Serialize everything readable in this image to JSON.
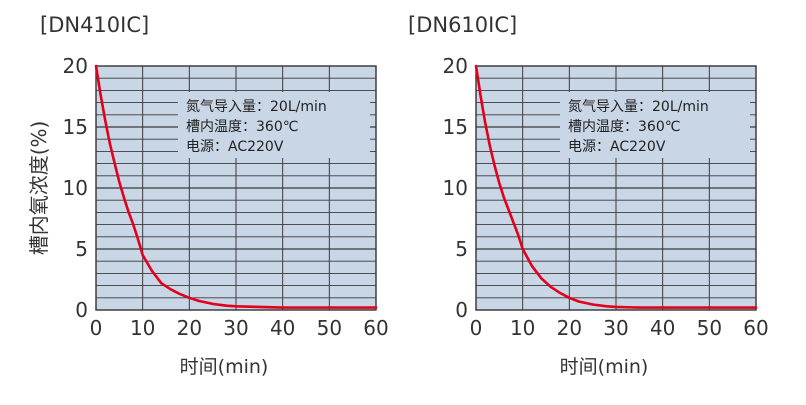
{
  "y_axis_label": "槽内氧浓度(%)",
  "chart_data": [
    {
      "type": "line",
      "title": "[DN410IC]",
      "xlabel": "时间(min)",
      "ylabel": "槽内氧浓度(%)",
      "xlim": [
        0,
        60
      ],
      "ylim": [
        0,
        20
      ],
      "x_ticks": [
        "0",
        "10",
        "20",
        "30",
        "40",
        "50",
        "60"
      ],
      "y_ticks": [
        "0",
        "5",
        "10",
        "15",
        "20"
      ],
      "grid": true,
      "annotations": [
        "氮气导入量：20L/min",
        "槽内温度：360℃",
        "电源：AC220V"
      ],
      "series": [
        {
          "color": "#e3001b",
          "x": [
            0,
            1,
            2,
            3,
            4,
            5,
            6,
            7,
            8,
            9,
            10,
            12,
            14,
            16,
            18,
            20,
            22,
            25,
            28,
            30,
            35,
            40,
            45,
            50,
            55,
            60
          ],
          "y": [
            20,
            17.6,
            15.5,
            13.6,
            12.0,
            10.5,
            9.2,
            8.0,
            7.0,
            5.8,
            4.5,
            3.2,
            2.2,
            1.7,
            1.3,
            1.0,
            0.75,
            0.5,
            0.35,
            0.3,
            0.25,
            0.2,
            0.2,
            0.2,
            0.2,
            0.2
          ]
        }
      ]
    },
    {
      "type": "line",
      "title": "[DN610IC]",
      "xlabel": "时间(min)",
      "ylabel": "",
      "xlim": [
        0,
        60
      ],
      "ylim": [
        0,
        20
      ],
      "x_ticks": [
        "0",
        "10",
        "20",
        "30",
        "40",
        "50",
        "60"
      ],
      "y_ticks": [
        "0",
        "5",
        "10",
        "15",
        "20"
      ],
      "grid": true,
      "annotations": [
        "氮气导入量：20L/min",
        "槽内温度：360℃",
        "电源：AC220V"
      ],
      "series": [
        {
          "color": "#e3001b",
          "x": [
            0,
            1,
            2,
            3,
            4,
            5,
            6,
            7,
            8,
            9,
            10,
            12,
            14,
            16,
            18,
            20,
            22,
            25,
            28,
            30,
            35,
            40,
            45,
            50,
            55,
            60
          ],
          "y": [
            20,
            17.5,
            15.3,
            13.4,
            11.8,
            10.4,
            9.2,
            8.2,
            7.2,
            6.2,
            5.0,
            3.6,
            2.6,
            1.9,
            1.4,
            1.0,
            0.7,
            0.45,
            0.3,
            0.25,
            0.2,
            0.2,
            0.2,
            0.2,
            0.2,
            0.2
          ]
        }
      ]
    }
  ]
}
